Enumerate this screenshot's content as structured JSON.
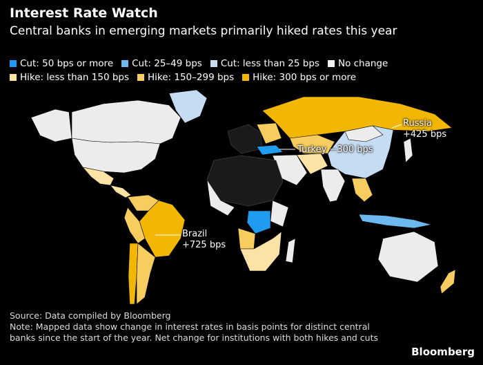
{
  "title": "Interest Rate Watch",
  "subtitle": "Central banks in emerging markets primarily hiked rates this year",
  "legend": [
    {
      "label": "Cut: 50 bps or more",
      "color": "#1f9cf0"
    },
    {
      "label": "Cut: 25–49 bps",
      "color": "#6db8ef"
    },
    {
      "label": "Cut: less than 25 bps",
      "color": "#c5dcf2"
    },
    {
      "label": "No change",
      "color": "#f0f0f0"
    },
    {
      "label": "Hike: less than 150 bps",
      "color": "#fbe3a6"
    },
    {
      "label": "Hike: 150–299 bps",
      "color": "#f6cd5e"
    },
    {
      "label": "Hike: 300 bps or more",
      "color": "#f2b705"
    }
  ],
  "callouts": {
    "russia": {
      "name": "Russia",
      "value": "+425 bps"
    },
    "turkey": {
      "label": "Turkey −300 bps"
    },
    "brazil": {
      "name": "Brazil",
      "value": "+725 bps"
    }
  },
  "footer": {
    "source": "Source: Data compiled by Bloomberg",
    "note": "Note: Mapped data show change in interest rates in basis points for distinct central banks since the start of the year. Net change for institutions with both hikes and cuts"
  },
  "brand": "Bloomberg",
  "colors": {
    "no_data": "#1a1a1a",
    "no_change": "#ececec",
    "hike_300": "#f2b705",
    "hike_150": "#f6cd5e",
    "hike_lt150": "#fbe3a6",
    "cut_50": "#1f9cf0",
    "cut_25": "#6db8ef",
    "cut_lt25": "#c5dcf2"
  }
}
